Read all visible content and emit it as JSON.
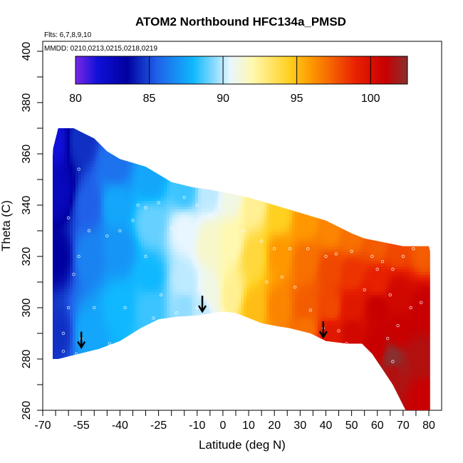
{
  "chart_data": {
    "type": "heatmap",
    "title": "ATOM2 Northbound HFC134a_PMSD",
    "notes": [
      "Flts: 6,7,8,9,10",
      "MMDD: 0210,0213,0215,0218,0219"
    ],
    "xlabel": "Latitude (deg N)",
    "ylabel": "Theta (C)",
    "xlim": [
      -70,
      85
    ],
    "ylim": [
      260,
      404
    ],
    "x_ticks": [
      -70,
      -55,
      -40,
      -25,
      -10,
      0,
      10,
      20,
      30,
      40,
      50,
      60,
      70,
      80
    ],
    "y_ticks": [
      260,
      280,
      300,
      320,
      340,
      360,
      380,
      400
    ],
    "colorbar": {
      "range": [
        80,
        102.5
      ],
      "ticks": [
        80,
        85,
        90,
        95,
        100
      ],
      "stops": [
        {
          "value": 80,
          "color": "#7a28e6"
        },
        {
          "value": 81.5,
          "color": "#1010d8"
        },
        {
          "value": 83.5,
          "color": "#0000a0"
        },
        {
          "value": 85.5,
          "color": "#2060e8"
        },
        {
          "value": 88,
          "color": "#10b8ff"
        },
        {
          "value": 90.5,
          "color": "#e8f6ff"
        },
        {
          "value": 92,
          "color": "#fff8b0"
        },
        {
          "value": 94.5,
          "color": "#ffd020"
        },
        {
          "value": 96,
          "color": "#ff9800"
        },
        {
          "value": 99,
          "color": "#e82000"
        },
        {
          "value": 101,
          "color": "#c80000"
        },
        {
          "value": 102.5,
          "color": "#883030"
        }
      ]
    },
    "boundary": {
      "top": [
        [
          -67,
          340
        ],
        [
          -66,
          362
        ],
        [
          -64,
          370
        ],
        [
          -58,
          370
        ],
        [
          -54,
          368
        ],
        [
          -50,
          366
        ],
        [
          -45,
          361
        ],
        [
          -40,
          358
        ],
        [
          -30,
          355
        ],
        [
          -25,
          352
        ],
        [
          -20,
          349
        ],
        [
          -12,
          347
        ],
        [
          -5,
          346
        ],
        [
          0,
          345
        ],
        [
          10,
          343
        ],
        [
          20,
          340
        ],
        [
          30,
          337
        ],
        [
          40,
          334
        ],
        [
          50,
          329
        ],
        [
          55,
          327
        ],
        [
          60,
          326
        ],
        [
          70,
          324
        ],
        [
          80,
          324
        ],
        [
          80.5,
          322
        ]
      ],
      "bottom": [
        [
          80.5,
          260
        ],
        [
          71,
          260
        ],
        [
          66,
          270
        ],
        [
          62,
          276
        ],
        [
          58,
          282
        ],
        [
          54,
          286
        ],
        [
          48,
          286
        ],
        [
          40,
          287
        ],
        [
          34,
          290
        ],
        [
          26,
          292
        ],
        [
          20,
          293
        ],
        [
          15,
          294
        ],
        [
          5,
          298
        ],
        [
          0,
          298.5
        ],
        [
          -10,
          297
        ],
        [
          -18,
          296.5
        ],
        [
          -25,
          295.5
        ],
        [
          -32,
          292
        ],
        [
          -40,
          287
        ],
        [
          -48,
          284
        ],
        [
          -52,
          283
        ],
        [
          -60,
          281
        ],
        [
          -64,
          280
        ],
        [
          -67,
          280
        ]
      ]
    },
    "field_anchors": [
      [
        -66,
        365,
        81.5
      ],
      [
        -64,
        345,
        82.5
      ],
      [
        -64,
        320,
        83.5
      ],
      [
        -64,
        290,
        84.5
      ],
      [
        -55,
        365,
        84.5
      ],
      [
        -52,
        340,
        85.5
      ],
      [
        -52,
        320,
        86.5
      ],
      [
        -52,
        290,
        87.5
      ],
      [
        -42,
        356,
        86
      ],
      [
        -42,
        340,
        87.5
      ],
      [
        -40,
        322,
        87
      ],
      [
        -40,
        300,
        88
      ],
      [
        -28,
        350,
        87.5
      ],
      [
        -28,
        333,
        89
      ],
      [
        -28,
        312,
        88
      ],
      [
        -28,
        300,
        88.5
      ],
      [
        -15,
        346,
        88.5
      ],
      [
        -15,
        330,
        90.5
      ],
      [
        -15,
        310,
        90
      ],
      [
        -15,
        300,
        89.5
      ],
      [
        -5,
        345,
        90
      ],
      [
        -5,
        325,
        91.5
      ],
      [
        -5,
        305,
        91
      ],
      [
        -8,
        300,
        90
      ],
      [
        3,
        344,
        91
      ],
      [
        3,
        325,
        92
      ],
      [
        3,
        305,
        92.5
      ],
      [
        12,
        340,
        92.5
      ],
      [
        12,
        320,
        94
      ],
      [
        12,
        300,
        95
      ],
      [
        22,
        337,
        94.5
      ],
      [
        22,
        320,
        96
      ],
      [
        22,
        300,
        96.5
      ],
      [
        32,
        334,
        96
      ],
      [
        32,
        318,
        97
      ],
      [
        32,
        300,
        97.5
      ],
      [
        32,
        292,
        97
      ],
      [
        42,
        330,
        96.5
      ],
      [
        42,
        315,
        98
      ],
      [
        42,
        300,
        98
      ],
      [
        42,
        290,
        99.5
      ],
      [
        50,
        328,
        97
      ],
      [
        50,
        313,
        98.5
      ],
      [
        50,
        300,
        99.5
      ],
      [
        50,
        290,
        100.5
      ],
      [
        60,
        325,
        97.5
      ],
      [
        60,
        310,
        99
      ],
      [
        60,
        300,
        101
      ],
      [
        60,
        285,
        101
      ],
      [
        68,
        323,
        98
      ],
      [
        68,
        305,
        100.5
      ],
      [
        68,
        290,
        101
      ],
      [
        66,
        275,
        101.5
      ],
      [
        66,
        280,
        102.5
      ],
      [
        78,
        322,
        97.5
      ],
      [
        78,
        300,
        101
      ],
      [
        78,
        280,
        101.5
      ],
      [
        78,
        265,
        101
      ]
    ],
    "markers": [
      [
        -55,
        288
      ],
      [
        -8,
        300
      ],
      [
        39,
        292
      ],
      [
        -68,
        294
      ],
      [
        -62,
        283
      ],
      [
        -57,
        282
      ],
      [
        -60,
        335
      ],
      [
        -56,
        354
      ],
      [
        -52,
        330
      ],
      [
        -50,
        300
      ],
      [
        -44,
        286
      ],
      [
        -38,
        300
      ],
      [
        -30,
        320
      ],
      [
        -24,
        305
      ],
      [
        -20,
        331
      ],
      [
        -15,
        343
      ],
      [
        -10,
        340
      ],
      [
        -5,
        336
      ],
      [
        -33,
        340
      ],
      [
        -30,
        339
      ],
      [
        -25,
        341
      ],
      [
        -35,
        334
      ],
      [
        -40,
        330
      ],
      [
        -45,
        328
      ],
      [
        -27,
        296
      ],
      [
        -18,
        298
      ],
      [
        -10,
        300
      ],
      [
        17,
        310
      ],
      [
        20,
        323
      ],
      [
        26,
        323
      ],
      [
        33,
        323
      ],
      [
        40,
        320
      ],
      [
        44,
        321
      ],
      [
        50,
        322
      ],
      [
        58,
        320
      ],
      [
        62,
        318
      ],
      [
        66,
        315
      ],
      [
        70,
        320
      ],
      [
        74,
        323
      ],
      [
        60,
        315
      ],
      [
        55,
        307
      ],
      [
        65,
        305
      ],
      [
        73,
        300
      ],
      [
        77,
        302
      ],
      [
        64,
        288
      ],
      [
        66,
        279
      ],
      [
        68,
        293
      ],
      [
        45,
        291
      ],
      [
        48,
        286
      ],
      [
        34,
        299
      ],
      [
        28,
        308
      ],
      [
        23,
        312
      ],
      [
        15,
        326
      ],
      [
        8,
        330
      ],
      [
        -62,
        290
      ],
      [
        -60,
        300
      ],
      [
        -58,
        313
      ],
      [
        -56,
        320
      ]
    ],
    "arrows": [
      [
        -55,
        289
      ],
      [
        -8,
        303
      ],
      [
        39,
        293
      ]
    ]
  }
}
